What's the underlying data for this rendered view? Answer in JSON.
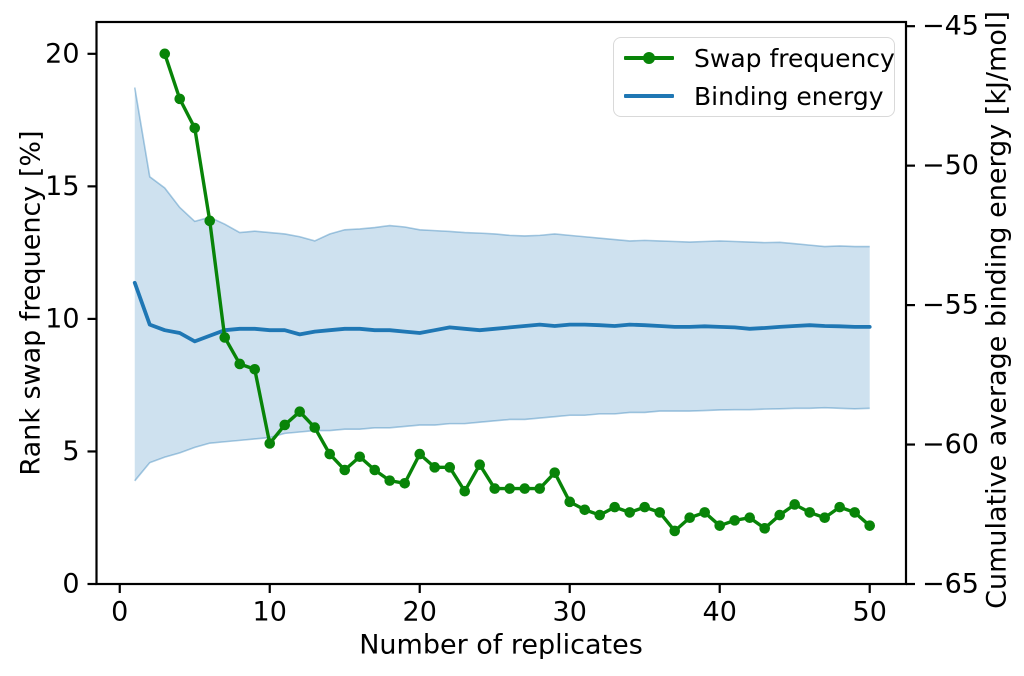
{
  "chart_data": {
    "type": "line",
    "title": "",
    "xlabel": "Number of replicates",
    "ylabel_left": "Rank swap frequency [%]",
    "ylabel_right": "Cumulative average binding energy [kJ/mol]",
    "xlim": [
      -1.55,
      52.42
    ],
    "ylim_left": [
      0,
      21.2
    ],
    "ylim_right": [
      -65,
      -44.85
    ],
    "xticks": [
      0,
      10,
      20,
      30,
      40,
      50
    ],
    "yticks_left": [
      0,
      5,
      10,
      15,
      20
    ],
    "yticks_right": [
      -65,
      -60,
      -55,
      -50,
      -45
    ],
    "grid": false,
    "colors": {
      "swap_frequency": "#088408",
      "binding_energy": "#1f77b4",
      "band_fill_rgba": "rgba(31,119,180,0.22)",
      "band_edge_rgba": "rgba(31,119,180,0.38)",
      "axes": "#000000"
    },
    "legend": {
      "position": "upper right",
      "entries": [
        {
          "label": "Swap frequency",
          "color": "#088408",
          "marker": "circle"
        },
        {
          "label": "Binding energy",
          "color": "#1f77b4",
          "marker": "none"
        }
      ]
    },
    "series": [
      {
        "name": "Swap frequency",
        "axis": "left",
        "marker": "circle",
        "x": [
          3,
          4,
          5,
          6,
          7,
          8,
          9,
          10,
          11,
          12,
          13,
          14,
          15,
          16,
          17,
          18,
          19,
          20,
          21,
          22,
          23,
          24,
          25,
          26,
          27,
          28,
          29,
          30,
          31,
          32,
          33,
          34,
          35,
          36,
          37,
          38,
          39,
          40,
          41,
          42,
          43,
          44,
          45,
          46,
          47,
          48,
          49,
          50
        ],
        "y": [
          20.0,
          18.3,
          17.2,
          13.7,
          9.3,
          8.3,
          8.1,
          5.3,
          6.0,
          6.5,
          5.9,
          4.9,
          4.3,
          4.8,
          4.3,
          3.9,
          3.8,
          4.9,
          4.4,
          4.4,
          3.5,
          4.5,
          3.6,
          3.6,
          3.6,
          3.6,
          4.2,
          3.1,
          2.8,
          2.6,
          2.9,
          2.7,
          2.9,
          2.7,
          2.0,
          2.5,
          2.7,
          2.2,
          2.4,
          2.5,
          2.1,
          2.6,
          3.0,
          2.7,
          2.5,
          2.9,
          2.7,
          2.2
        ]
      },
      {
        "name": "Binding energy",
        "axis": "right",
        "marker": "none",
        "x": [
          1,
          2,
          3,
          4,
          5,
          6,
          7,
          8,
          9,
          10,
          11,
          12,
          13,
          14,
          15,
          16,
          17,
          18,
          19,
          20,
          21,
          22,
          23,
          24,
          25,
          26,
          27,
          28,
          29,
          30,
          31,
          32,
          33,
          34,
          35,
          36,
          37,
          38,
          39,
          40,
          41,
          42,
          43,
          44,
          45,
          46,
          47,
          48,
          49,
          50
        ],
        "y": [
          -54.2,
          -55.7,
          -55.9,
          -56.0,
          -56.3,
          -56.1,
          -55.9,
          -55.85,
          -55.85,
          -55.9,
          -55.9,
          -56.05,
          -55.95,
          -55.9,
          -55.85,
          -55.85,
          -55.9,
          -55.9,
          -55.95,
          -56.0,
          -55.9,
          -55.8,
          -55.85,
          -55.9,
          -55.85,
          -55.8,
          -55.75,
          -55.7,
          -55.75,
          -55.7,
          -55.7,
          -55.72,
          -55.75,
          -55.7,
          -55.72,
          -55.75,
          -55.78,
          -55.78,
          -55.76,
          -55.78,
          -55.8,
          -55.85,
          -55.82,
          -55.78,
          -55.75,
          -55.72,
          -55.75,
          -55.76,
          -55.78,
          -55.78
        ],
        "band_upper": [
          -47.2,
          -50.4,
          -50.8,
          -51.5,
          -52.0,
          -51.85,
          -52.1,
          -52.4,
          -52.35,
          -52.4,
          -52.45,
          -52.55,
          -52.7,
          -52.45,
          -52.3,
          -52.27,
          -52.22,
          -52.15,
          -52.2,
          -52.3,
          -52.33,
          -52.36,
          -52.4,
          -52.42,
          -52.45,
          -52.5,
          -52.52,
          -52.5,
          -52.45,
          -52.5,
          -52.55,
          -52.6,
          -52.65,
          -52.7,
          -52.68,
          -52.7,
          -52.72,
          -52.74,
          -52.72,
          -52.7,
          -52.72,
          -52.74,
          -52.76,
          -52.75,
          -52.8,
          -52.85,
          -52.9,
          -52.88,
          -52.9,
          -52.9
        ],
        "band_lower": [
          -61.3,
          -60.65,
          -60.45,
          -60.3,
          -60.1,
          -59.95,
          -59.9,
          -59.85,
          -59.8,
          -59.75,
          -59.6,
          -59.55,
          -59.5,
          -59.5,
          -59.45,
          -59.45,
          -59.4,
          -59.4,
          -59.35,
          -59.3,
          -59.3,
          -59.25,
          -59.25,
          -59.2,
          -59.15,
          -59.1,
          -59.1,
          -59.05,
          -59.0,
          -58.95,
          -58.95,
          -58.9,
          -58.9,
          -58.85,
          -58.85,
          -58.8,
          -58.8,
          -58.8,
          -58.78,
          -58.76,
          -58.75,
          -58.75,
          -58.73,
          -58.72,
          -58.7,
          -58.7,
          -58.68,
          -58.7,
          -58.72,
          -58.7
        ]
      }
    ]
  }
}
